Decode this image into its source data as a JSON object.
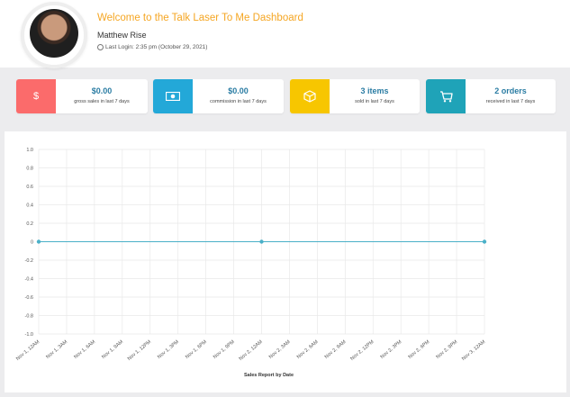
{
  "header": {
    "welcome": "Welcome to the Talk Laser To Me Dashboard",
    "user_name": "Matthew Rise",
    "last_login": "Last Login: 2:35 pm (October 29, 2021)"
  },
  "cards": [
    {
      "icon": "dollar-icon",
      "icon_glyph": "$",
      "color": "#fb6b6b",
      "value": "$0.00",
      "label": "gross sales in last 7 days"
    },
    {
      "icon": "money-bill-icon",
      "icon_glyph": "▣",
      "color": "#23a8d8",
      "value": "$0.00",
      "label": "commission in last 7 days"
    },
    {
      "icon": "cube-icon",
      "icon_glyph": "⬡",
      "color": "#f7c600",
      "value": "3 items",
      "label": "sold in last 7 days"
    },
    {
      "icon": "cart-icon",
      "icon_glyph": "🛒",
      "color": "#1fa3b8",
      "value": "2 orders",
      "label": "received in last 7 days"
    }
  ],
  "chart_data": {
    "type": "line",
    "xlabel": "Sales Report by Date",
    "ylabel": "",
    "ylim": [
      -1.0,
      1.0
    ],
    "yticks": [
      "1.0",
      "0.8",
      "0.6",
      "0.4",
      "0.2",
      "0",
      "-0.2",
      "-0.4",
      "-0.6",
      "-0.8",
      "-1.0"
    ],
    "categories": [
      "Nov 1, 12AM",
      "Nov 1, 3AM",
      "Nov 1, 6AM",
      "Nov 1, 9AM",
      "Nov 1, 12PM",
      "Nov 1, 3PM",
      "Nov 1, 6PM",
      "Nov 1, 9PM",
      "Nov 2, 12AM",
      "Nov 2, 3AM",
      "Nov 2, 6AM",
      "Nov 2, 9AM",
      "Nov 2, 12PM",
      "Nov 2, 3PM",
      "Nov 2, 6PM",
      "Nov 2, 9PM",
      "Nov 3, 12AM"
    ],
    "series": [
      {
        "color": "#4ab0c8",
        "values": [
          0,
          0,
          0,
          0,
          0,
          0,
          0,
          0,
          0,
          0,
          0,
          0,
          0,
          0,
          0,
          0,
          0
        ],
        "markers_at": [
          0,
          8,
          16
        ]
      },
      {
        "color": "#7bb84a",
        "segments": [
          [
            1,
            2.7
          ],
          [
            9,
            10.7
          ]
        ],
        "value": 0
      }
    ],
    "grid": true
  }
}
